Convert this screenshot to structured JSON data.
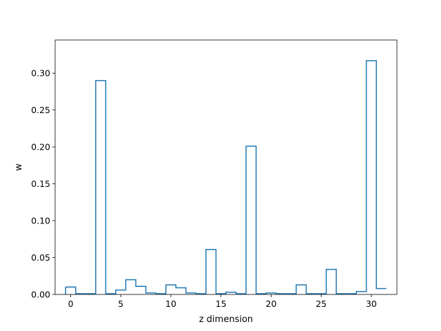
{
  "chart_data": {
    "type": "step",
    "title": "",
    "xlabel": "z dimension",
    "ylabel": "w",
    "x": [
      0,
      1,
      2,
      3,
      4,
      5,
      6,
      7,
      8,
      9,
      10,
      11,
      12,
      13,
      14,
      15,
      16,
      17,
      18,
      19,
      20,
      21,
      22,
      23,
      24,
      25,
      26,
      27,
      28,
      29,
      30,
      31
    ],
    "series": [
      {
        "color": "#1f77b4",
        "values": [
          0.01,
          0.001,
          0.001,
          0.29,
          0.001,
          0.006,
          0.02,
          0.011,
          0.002,
          0.001,
          0.013,
          0.009,
          0.002,
          0.001,
          0.061,
          0.001,
          0.003,
          0.001,
          0.201,
          0.001,
          0.002,
          0.001,
          0.001,
          0.013,
          0.001,
          0.001,
          0.034,
          0.001,
          0.001,
          0.004,
          0.317,
          0.008
        ]
      }
    ],
    "xlim": [
      -1.55,
      32.55
    ],
    "ylim": [
      0,
      0.345
    ],
    "xticks": [
      0,
      5,
      10,
      15,
      20,
      25,
      30
    ],
    "xtick_labels": [
      "0",
      "5",
      "10",
      "15",
      "20",
      "25",
      "30"
    ],
    "yticks": [
      0,
      0.05,
      0.1,
      0.15,
      0.2,
      0.25,
      0.3
    ],
    "ytick_labels": [
      "0.00",
      "0.05",
      "0.10",
      "0.15",
      "0.20",
      "0.25",
      "0.30"
    ],
    "grid": false,
    "legend": "none"
  }
}
